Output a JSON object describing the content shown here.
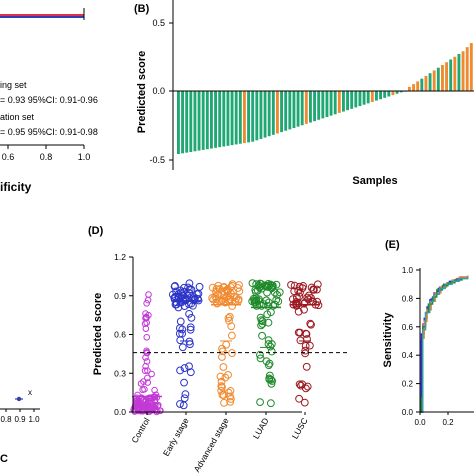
{
  "panel_a": {
    "legend_lines": [
      "ing set",
      "= 0.93 95%CI: 0.91-0.96",
      "ation set",
      "= 0.95 95%CI: 0.91-0.98"
    ],
    "x_ticks": [
      "0.6",
      "0.8",
      "1.0"
    ],
    "xlabel": "ificity",
    "colors": {
      "training": "#e0314a",
      "validation": "#2f3fb2"
    }
  },
  "panel_c": {
    "text_x": "x",
    "x_ticks": [
      "0.8",
      "0.9",
      "1.0"
    ],
    "bottom": "C",
    "point_color": "#2f3fb2"
  },
  "chart_data": [
    {
      "panel": "(B)",
      "type": "bar",
      "xlabel": "Samples",
      "ylabel": "Predicted score",
      "ylim": [
        -0.5,
        0.5
      ],
      "y_ticks": [
        "0.5",
        "0.0",
        "-0.5"
      ],
      "colors": {
        "negative": "#1fa874",
        "positive": "#f08a30"
      },
      "values": [
        -0.46,
        -0.455,
        -0.45,
        -0.445,
        -0.44,
        -0.435,
        -0.43,
        -0.425,
        -0.42,
        -0.415,
        -0.41,
        -0.405,
        -0.4,
        -0.395,
        -0.39,
        -0.385,
        -0.38,
        -0.375,
        -0.37,
        -0.36,
        -0.35,
        -0.34,
        -0.33,
        -0.32,
        -0.31,
        -0.3,
        -0.29,
        -0.28,
        -0.27,
        -0.26,
        -0.25,
        -0.24,
        -0.23,
        -0.22,
        -0.21,
        -0.2,
        -0.19,
        -0.18,
        -0.17,
        -0.16,
        -0.15,
        -0.14,
        -0.13,
        -0.12,
        -0.11,
        -0.1,
        -0.09,
        -0.08,
        -0.07,
        -0.06,
        -0.05,
        -0.04,
        -0.03,
        -0.02,
        -0.01,
        -0.005,
        0.03,
        0.05,
        0.07,
        0.09,
        0.11,
        0.13,
        0.15,
        0.17,
        0.19,
        0.21,
        0.23,
        0.25,
        0.27,
        0.29,
        0.32,
        0.35
      ],
      "highlight_indices": [
        16,
        24,
        31,
        39,
        47,
        52,
        56,
        57,
        58,
        60,
        62,
        64,
        65,
        67,
        69,
        70,
        71
      ]
    },
    {
      "panel": "(D)",
      "type": "scatter",
      "ylabel": "Predicted score",
      "ylim": [
        0.0,
        1.2
      ],
      "y_ticks": [
        "1.2",
        "0.9",
        "0.6",
        "0.3",
        "0.0"
      ],
      "categories": [
        "Control",
        "Early stage",
        "Advanced stage",
        "LUAD",
        "LUSC"
      ],
      "colors": [
        "#c23ad6",
        "#2d35c8",
        "#f08a30",
        "#1f8a2c",
        "#9b1a22"
      ],
      "means": [
        0.12,
        0.86,
        0.83,
        0.81,
        0.83
      ],
      "sd_low": [
        0.0,
        0.55,
        0.55,
        0.5,
        0.55
      ],
      "sd_high": [
        0.3,
        1.0,
        1.0,
        1.0,
        1.0
      ],
      "cutoff": 0.46
    },
    {
      "panel": "(E)",
      "type": "line",
      "ylabel": "Sensitivity",
      "ylim": [
        0.0,
        1.0
      ],
      "y_ticks": [
        "1.0",
        "0.8",
        "0.6",
        "0.4",
        "0.2",
        "0.0"
      ],
      "x_ticks": [
        "0.0",
        "0.2"
      ],
      "series": [
        {
          "color": "#c23ad6",
          "x": [
            0,
            0.01,
            0.02,
            0.04,
            0.06,
            0.08,
            0.1,
            0.14,
            0.18,
            0.22,
            0.26,
            0.3,
            0.34
          ],
          "y": [
            0,
            0.5,
            0.62,
            0.7,
            0.75,
            0.8,
            0.84,
            0.88,
            0.9,
            0.92,
            0.94,
            0.95,
            0.96
          ]
        },
        {
          "color": "#2d35c8",
          "x": [
            0,
            0.01,
            0.03,
            0.05,
            0.07,
            0.1,
            0.13,
            0.17,
            0.21,
            0.25,
            0.29,
            0.34
          ],
          "y": [
            0,
            0.55,
            0.66,
            0.74,
            0.79,
            0.83,
            0.87,
            0.9,
            0.92,
            0.93,
            0.95,
            0.96
          ]
        },
        {
          "color": "#f08a30",
          "x": [
            0,
            0.02,
            0.03,
            0.05,
            0.08,
            0.11,
            0.15,
            0.19,
            0.23,
            0.28,
            0.34
          ],
          "y": [
            0,
            0.52,
            0.64,
            0.72,
            0.78,
            0.84,
            0.88,
            0.91,
            0.93,
            0.95,
            0.96
          ]
        },
        {
          "color": "#1f8a2c",
          "x": [
            0,
            0.01,
            0.02,
            0.04,
            0.06,
            0.09,
            0.12,
            0.16,
            0.2,
            0.25,
            0.3,
            0.34
          ],
          "y": [
            0,
            0.1,
            0.6,
            0.7,
            0.76,
            0.81,
            0.86,
            0.89,
            0.91,
            0.93,
            0.94,
            0.95
          ]
        },
        {
          "color": "#2f9fb0",
          "x": [
            0,
            0.02,
            0.04,
            0.07,
            0.1,
            0.14,
            0.18,
            0.23,
            0.28,
            0.34
          ],
          "y": [
            0,
            0.58,
            0.7,
            0.78,
            0.83,
            0.87,
            0.9,
            0.92,
            0.94,
            0.95
          ]
        }
      ]
    }
  ],
  "panel_labels": {
    "b": "(B)",
    "d": "(D)",
    "e": "(E)"
  }
}
